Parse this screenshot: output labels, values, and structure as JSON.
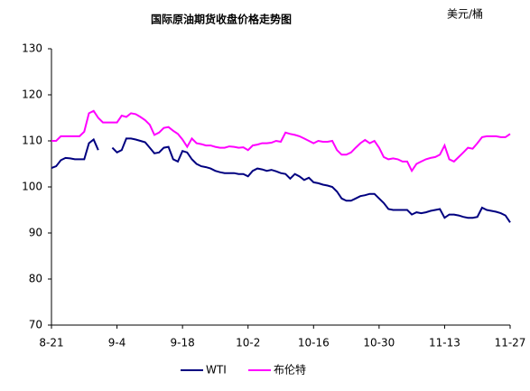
{
  "chart_data": {
    "type": "line",
    "title": "国际原油期货收盘价格走势图",
    "unit": "美元/桶",
    "categories": [
      "8-21",
      null,
      null,
      null,
      null,
      null,
      null,
      null,
      null,
      null,
      null,
      null,
      null,
      null,
      "9-4",
      null,
      null,
      null,
      null,
      null,
      null,
      null,
      null,
      null,
      null,
      null,
      null,
      null,
      "9-18",
      null,
      null,
      null,
      null,
      null,
      null,
      null,
      null,
      null,
      null,
      null,
      null,
      null,
      "10-2",
      null,
      null,
      null,
      null,
      null,
      null,
      null,
      null,
      null,
      null,
      null,
      null,
      null,
      "10-16",
      null,
      null,
      null,
      null,
      null,
      null,
      null,
      null,
      null,
      null,
      null,
      null,
      null,
      "10-30",
      null,
      null,
      null,
      null,
      null,
      null,
      null,
      null,
      null,
      null,
      null,
      null,
      null,
      "11-13",
      null,
      null,
      null,
      null,
      null,
      null,
      null,
      null,
      null,
      null,
      null,
      null,
      null,
      "11-27"
    ],
    "series": [
      {
        "name": "WTI",
        "color": "#000080",
        "values": [
          104.1,
          104.5,
          105.8,
          106.3,
          106.2,
          106,
          106,
          106,
          109.5,
          110.3,
          108,
          null,
          null,
          108.5,
          107.5,
          108,
          110.5,
          110.5,
          110.3,
          110,
          109.7,
          108.5,
          107.3,
          107.5,
          108.5,
          108.7,
          106,
          105.5,
          107.8,
          107.5,
          106,
          105,
          104.5,
          104.3,
          104,
          103.5,
          103.2,
          103,
          103,
          103,
          102.8,
          102.8,
          102.3,
          103.5,
          104,
          103.8,
          103.5,
          103.7,
          103.4,
          103,
          102.8,
          101.8,
          102.8,
          102.3,
          101.5,
          102,
          101,
          100.8,
          100.5,
          100.3,
          100,
          99,
          97.5,
          97,
          97,
          97.5,
          98,
          98.2,
          98.5,
          98.5,
          97.5,
          96.5,
          95.2,
          95,
          95,
          95,
          95,
          94,
          94.5,
          94.3,
          94.5,
          94.8,
          95,
          95.2,
          93.3,
          94,
          94,
          93.8,
          93.5,
          93.3,
          93.3,
          93.5,
          95.5,
          95,
          94.8,
          94.6,
          94.3,
          93.8,
          92.3
        ]
      },
      {
        "name": "布伦特",
        "color": "#ff00ff",
        "values": [
          110,
          110,
          111,
          111,
          111,
          111,
          111,
          112,
          116,
          116.5,
          115,
          114,
          114,
          114,
          114,
          115.5,
          115.2,
          116,
          115.8,
          115.2,
          114.5,
          113.5,
          111.3,
          111.8,
          112.8,
          113,
          112.2,
          111.5,
          110.3,
          108.7,
          110.5,
          109.5,
          109.3,
          109,
          109,
          108.7,
          108.5,
          108.5,
          108.8,
          108.7,
          108.5,
          108.6,
          108,
          109,
          109.2,
          109.5,
          109.5,
          109.6,
          110,
          109.8,
          111.8,
          111.5,
          111.3,
          111,
          110.5,
          110,
          109.5,
          110,
          109.8,
          109.8,
          110,
          108,
          107,
          107,
          107.5,
          108.5,
          109.5,
          110.2,
          109.5,
          110,
          108.5,
          106.5,
          106,
          106.2,
          106,
          105.5,
          105.5,
          103.5,
          105,
          105.5,
          106,
          106.3,
          106.5,
          107,
          109,
          106,
          105.5,
          106.5,
          107.5,
          108.5,
          108.3,
          109.5,
          110.8,
          111,
          111,
          111,
          110.8,
          110.8,
          111.5
        ]
      }
    ],
    "ylim": [
      70,
      130
    ],
    "yticks": [
      70,
      80,
      90,
      100,
      110,
      120,
      130
    ],
    "grid": false,
    "legend": "bottom"
  }
}
